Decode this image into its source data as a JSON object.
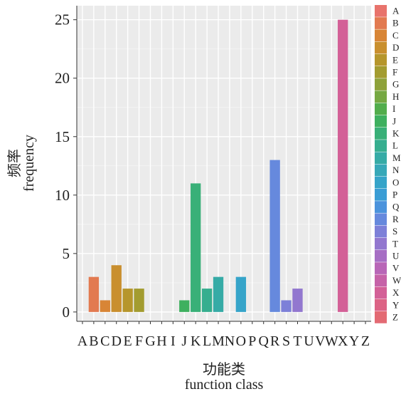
{
  "chart_data": {
    "type": "bar",
    "categories": [
      "A",
      "B",
      "C",
      "D",
      "E",
      "F",
      "G",
      "H",
      "I",
      "J",
      "K",
      "L",
      "M",
      "N",
      "O",
      "P",
      "Q",
      "R",
      "S",
      "T",
      "U",
      "V",
      "W",
      "X",
      "Y",
      "Z"
    ],
    "values": [
      0,
      3,
      1,
      4,
      2,
      2,
      0,
      0,
      0,
      1,
      11,
      2,
      3,
      0,
      3,
      0,
      0,
      13,
      1,
      2,
      0,
      0,
      0,
      25,
      0,
      0
    ],
    "colors": [
      "#e8736c",
      "#e27a50",
      "#d88536",
      "#c98f2e",
      "#b6962c",
      "#a39c30",
      "#8ea23a",
      "#76a842",
      "#52ad4c",
      "#3eb05f",
      "#39b078",
      "#36ae8f",
      "#36aba6",
      "#37a8b8",
      "#36a4c9",
      "#3a9dd5",
      "#4b93dc",
      "#6689dd",
      "#7d80d8",
      "#9277cf",
      "#a66ec4",
      "#b866b7",
      "#c662a8",
      "#d36097",
      "#dc6385",
      "#e36a73"
    ],
    "xlabel": "function class",
    "xlabel_cn": "功能类",
    "ylabel": "frequency",
    "ylabel_cn": "频率",
    "yticks": [
      0,
      5,
      10,
      15,
      20,
      25
    ],
    "ylim": [
      -0.8,
      26.2
    ],
    "grid": true,
    "legend": "right"
  }
}
